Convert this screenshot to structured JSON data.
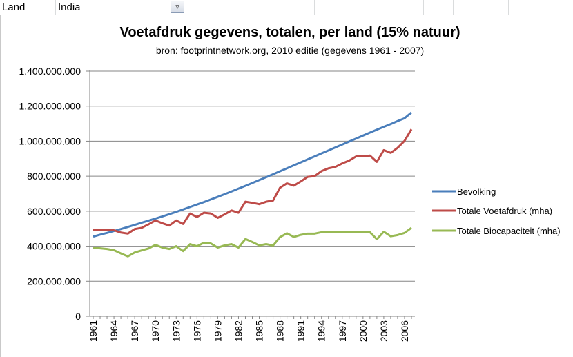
{
  "sheet": {
    "label_cell": "Land",
    "value_cell": "India",
    "filter_icon": "filter-dropdown-icon"
  },
  "chart_data": {
    "type": "line",
    "title": "Voetafdruk gegevens, totalen, per land (15% natuur)",
    "subtitle": "bron: footprintnetwork.org, 2010 editie (gegevens 1961 - 2007)",
    "xlabel": "",
    "ylabel": "",
    "ylim": [
      0,
      1400000000
    ],
    "yticks": [
      "0",
      "200.000.000",
      "400.000.000",
      "600.000.000",
      "800.000.000",
      "1.000.000.000",
      "1.200.000.000",
      "1.400.000.000"
    ],
    "xtick_labels": [
      "1961",
      "1964",
      "1967",
      "1970",
      "1973",
      "1976",
      "1979",
      "1982",
      "1985",
      "1988",
      "1991",
      "1994",
      "1997",
      "2000",
      "2003",
      "2006"
    ],
    "x_start": 1961,
    "x_end": 2007,
    "grid": "horizontal",
    "legend": "right",
    "unit_multiplier": 1000000,
    "series": [
      {
        "name": "Bevolking",
        "color": "#4a7ebb",
        "values": [
          455,
          466,
          476,
          487,
          498,
          510,
          522,
          534,
          546,
          558,
          570,
          583,
          596,
          610,
          624,
          638,
          652,
          667,
          682,
          697,
          713,
          729,
          745,
          761,
          778,
          794,
          811,
          828,
          845,
          862,
          879,
          896,
          913,
          930,
          947,
          964,
          981,
          998,
          1015,
          1032,
          1049,
          1066,
          1082,
          1098,
          1115,
          1131,
          1164
        ]
      },
      {
        "name": "Totale Voetafdruk (mha)",
        "color": "#be4b48",
        "values": [
          491,
          491,
          491,
          491,
          478,
          472,
          498,
          505,
          525,
          547,
          531,
          518,
          547,
          527,
          587,
          567,
          591,
          587,
          562,
          582,
          604,
          591,
          654,
          648,
          640,
          654,
          661,
          734,
          759,
          746,
          770,
          796,
          800,
          829,
          845,
          853,
          873,
          889,
          913,
          913,
          918,
          882,
          949,
          933,
          962,
          1002,
          1068
        ]
      },
      {
        "name": "Totale Biocapaciteit  (mha)",
        "color": "#98b954",
        "values": [
          392,
          388,
          384,
          377,
          359,
          342,
          364,
          376,
          387,
          408,
          392,
          384,
          400,
          372,
          412,
          400,
          420,
          416,
          392,
          405,
          412,
          392,
          441,
          424,
          405,
          412,
          404,
          452,
          474,
          453,
          465,
          472,
          472,
          480,
          483,
          480,
          480,
          480,
          482,
          483,
          480,
          440,
          483,
          457,
          464,
          476,
          505
        ]
      }
    ]
  }
}
